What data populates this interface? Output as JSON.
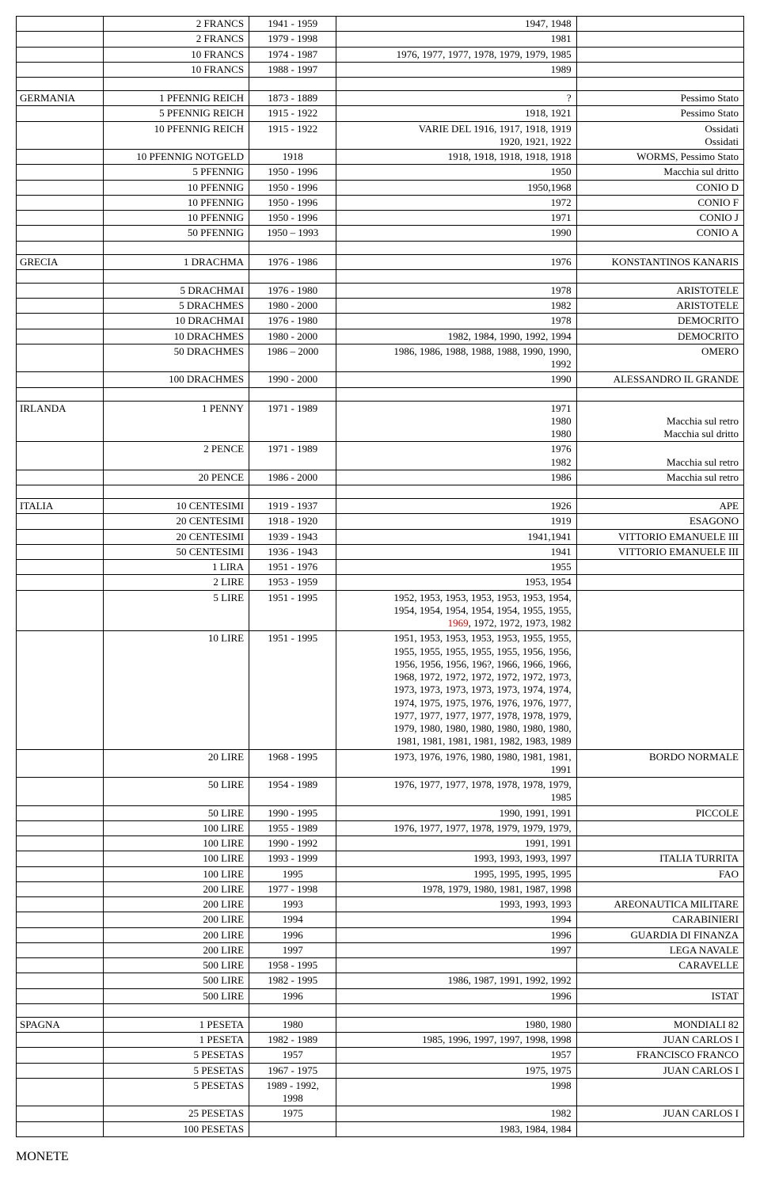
{
  "footer_title": "MONETE",
  "groups": [
    {
      "country": "",
      "rows": [
        {
          "denom": "2 FRANCS",
          "range": "1941 - 1959",
          "years": "1947, 1948",
          "note": ""
        },
        {
          "denom": "2 FRANCS",
          "range": "1979 - 1998",
          "years": "1981",
          "note": ""
        },
        {
          "denom": "10 FRANCS",
          "range": "1974 - 1987",
          "years": "1976, 1977, 1977, 1978, 1979, 1979, 1985",
          "note": ""
        },
        {
          "denom": "10 FRANCS",
          "range": "1988 - 1997",
          "years": "1989",
          "note": ""
        }
      ]
    },
    {
      "country": "GERMANIA",
      "rows": [
        {
          "denom": "1 PFENNIG REICH",
          "range": "1873 - 1889",
          "years": "?",
          "note": "Pessimo Stato"
        },
        {
          "denom": "5 PFENNIG REICH",
          "range": "1915 - 1922",
          "years": "1918, 1921",
          "note": "Pessimo Stato"
        },
        {
          "denom": "10 PFENNIG REICH",
          "range": "1915 - 1922",
          "years": "VARIE DEL 1916, 1917, 1918, 1919\n1920, 1921, 1922",
          "note": "Ossidati\nOssidati"
        },
        {
          "denom": "10 PFENNIG NOTGELD",
          "range": "1918",
          "years": "1918, 1918, 1918, 1918, 1918",
          "note": "WORMS, Pessimo Stato"
        },
        {
          "denom": "5 PFENNIG",
          "range": "1950 - 1996",
          "years": "1950",
          "note": "Macchia sul dritto"
        },
        {
          "denom": "10 PFENNIG",
          "range": "1950 - 1996",
          "years": "1950,1968",
          "note": "CONIO D"
        },
        {
          "denom": "10 PFENNIG",
          "range": "1950 - 1996",
          "years": "1972",
          "note": "CONIO F"
        },
        {
          "denom": "10 PFENNIG",
          "range": "1950 - 1996",
          "years": "1971",
          "note": "CONIO J"
        },
        {
          "denom": "50 PFENNIG",
          "range": "1950 – 1993",
          "years": "1990",
          "note": "CONIO A"
        }
      ]
    },
    {
      "country": "GRECIA",
      "rows": [
        {
          "denom": "1 DRACHMA",
          "range": "1976 - 1986",
          "years": "1976",
          "note": "KONSTANTINOS KANARIS"
        }
      ]
    },
    {
      "country": "",
      "rows": [
        {
          "denom": "5 DRACHMAI",
          "range": "1976 - 1980",
          "years": "1978",
          "note": "ARISTOTELE"
        },
        {
          "denom": "5 DRACHMES",
          "range": "1980 - 2000",
          "years": "1982",
          "note": "ARISTOTELE"
        },
        {
          "denom": "10 DRACHMAI",
          "range": "1976 - 1980",
          "years": "1978",
          "note": "DEMOCRITO"
        },
        {
          "denom": "10 DRACHMES",
          "range": "1980 - 2000",
          "years": "1982, 1984, 1990, 1992, 1994",
          "note": "DEMOCRITO"
        },
        {
          "denom": "50 DRACHMES",
          "range": "1986 – 2000",
          "years": "1986, 1986, 1988, 1988, 1988, 1990, 1990,\n1992",
          "note": "OMERO"
        },
        {
          "denom": "100 DRACHMES",
          "range": "1990 - 2000",
          "years": "1990",
          "note": "ALESSANDRO IL GRANDE"
        }
      ]
    },
    {
      "country": "IRLANDA",
      "rows": [
        {
          "denom": "1 PENNY",
          "range": "1971 - 1989",
          "years": "1971\n1980\n1980",
          "note": "\nMacchia sul retro\nMacchia sul dritto"
        },
        {
          "denom": "2 PENCE",
          "range": "1971 - 1989",
          "years": "1976\n1982",
          "note": "\nMacchia sul retro"
        },
        {
          "denom": "20 PENCE",
          "range": "1986 - 2000",
          "years": "1986",
          "note": "Macchia sul retro"
        }
      ]
    },
    {
      "country": "ITALIA",
      "rows": [
        {
          "denom": "10 CENTESIMI",
          "range": "1919 - 1937",
          "years": "1926",
          "note": "APE"
        },
        {
          "denom": "20 CENTESIMI",
          "range": "1918 - 1920",
          "years": "1919",
          "note": "ESAGONO"
        },
        {
          "denom": "20 CENTESIMI",
          "range": "1939 - 1943",
          "years": "1941,1941",
          "note": "VITTORIO EMANUELE III"
        },
        {
          "denom": "50 CENTESIMI",
          "range": "1936 - 1943",
          "years": "1941",
          "note": "VITTORIO EMANUELE III"
        },
        {
          "denom": "1 LIRA",
          "range": "1951 - 1976",
          "years": "1955",
          "note": ""
        },
        {
          "denom": "2 LIRE",
          "range": "1953 - 1959",
          "years": "1953, 1954",
          "note": ""
        },
        {
          "denom": "5 LIRE",
          "range": "1951 - 1995",
          "years_html": "1952, 1953, 1953, 1953, 1953, 1953, 1954,<br>1954, 1954, 1954, 1954, 1954, 1955, 1955,<br><span class=\"red\">1969</span>, 1972, 1972, 1973, 1982",
          "note": ""
        },
        {
          "denom": "10 LIRE",
          "range": "1951 - 1995",
          "years": "1951, 1953, 1953, 1953, 1953, 1955, 1955,\n1955, 1955, 1955, 1955, 1955, 1956, 1956,\n1956, 1956, 1956, 196?, 1966, 1966, 1966,\n1968, 1972, 1972, 1972, 1972, 1972, 1973,\n1973, 1973, 1973, 1973, 1973, 1974, 1974,\n1974, 1975, 1975, 1976, 1976, 1976, 1977,\n1977, 1977, 1977, 1977, 1978, 1978, 1979,\n1979, 1980, 1980, 1980, 1980, 1980, 1980,\n1981, 1981, 1981, 1981, 1982, 1983, 1989",
          "note": ""
        },
        {
          "denom": "20 LIRE",
          "range": "1968 - 1995",
          "years": "1973, 1976, 1976, 1980, 1980, 1981, 1981,\n1991",
          "note": "BORDO NORMALE"
        },
        {
          "denom": "50 LIRE",
          "range": "1954 - 1989",
          "years": "1976, 1977, 1977, 1978, 1978, 1978, 1979,\n1985",
          "note": ""
        },
        {
          "denom": "50 LIRE",
          "range": "1990 - 1995",
          "years": "1990, 1991, 1991",
          "note": "PICCOLE"
        },
        {
          "denom": "100 LIRE",
          "range": "1955 - 1989",
          "years": "1976, 1977, 1977, 1978, 1979, 1979, 1979,",
          "note": ""
        },
        {
          "denom": "100 LIRE",
          "range": "1990 - 1992",
          "years": "1991, 1991",
          "note": ""
        },
        {
          "denom": "100 LIRE",
          "range": "1993 - 1999",
          "years": "1993, 1993, 1993, 1997",
          "note": "ITALIA TURRITA"
        },
        {
          "denom": "100 LIRE",
          "range": "1995",
          "years": "1995, 1995, 1995, 1995",
          "note": "FAO"
        },
        {
          "denom": "200 LIRE",
          "range": "1977 - 1998",
          "years": "1978, 1979, 1980, 1981, 1987, 1998",
          "note": ""
        },
        {
          "denom": "200 LIRE",
          "range": "1993",
          "years": "1993, 1993, 1993",
          "note": "AREONAUTICA MILITARE"
        },
        {
          "denom": "200 LIRE",
          "range": "1994",
          "years": "1994",
          "note": "CARABINIERI"
        },
        {
          "denom": "200 LIRE",
          "range": "1996",
          "years": "1996",
          "note": "GUARDIA DI FINANZA"
        },
        {
          "denom": "200 LIRE",
          "range": "1997",
          "years": "1997",
          "note": "LEGA NAVALE"
        },
        {
          "denom": "500 LIRE",
          "range": "1958 - 1995",
          "years": "",
          "note": "CARAVELLE"
        },
        {
          "denom": "500 LIRE",
          "range": "1982 - 1995",
          "years": "1986, 1987, 1991, 1992, 1992",
          "note": ""
        },
        {
          "denom": "500 LIRE",
          "range": "1996",
          "years": "1996",
          "note": "ISTAT"
        }
      ]
    },
    {
      "country": "SPAGNA",
      "rows": [
        {
          "denom": "1 PESETA",
          "range": "1980",
          "years": "1980, 1980",
          "note": "MONDIALI 82"
        },
        {
          "denom": "1 PESETA",
          "range": "1982 - 1989",
          "years": "1985, 1996, 1997, 1997, 1998, 1998",
          "note": "JUAN CARLOS I"
        },
        {
          "denom": "5 PESETAS",
          "range": "1957",
          "years": "1957",
          "note": "FRANCISCO FRANCO"
        },
        {
          "denom": "5 PESETAS",
          "range": "1967 - 1975",
          "years": "1975, 1975",
          "note": "JUAN CARLOS I"
        },
        {
          "denom": "5 PESETAS",
          "range": "1989 - 1992,\n1998",
          "years": "1998",
          "note": ""
        },
        {
          "denom": "25 PESETAS",
          "range": "1975",
          "years": "1982",
          "note": "JUAN CARLOS I"
        },
        {
          "denom": "100 PESETAS",
          "range": "",
          "years": "1983, 1984, 1984",
          "note": ""
        }
      ]
    }
  ]
}
